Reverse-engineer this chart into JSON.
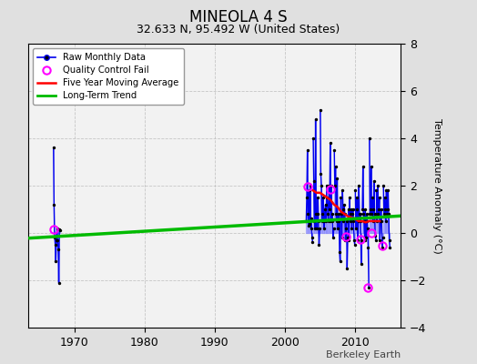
{
  "title": "MINEOLA 4 S",
  "subtitle": "32.633 N, 95.492 W (United States)",
  "ylabel": "Temperature Anomaly (°C)",
  "attribution": "Berkeley Earth",
  "xlim": [
    1963.5,
    2016.5
  ],
  "ylim": [
    -4,
    8
  ],
  "yticks": [
    -4,
    -2,
    0,
    2,
    4,
    6,
    8
  ],
  "xticks": [
    1970,
    1980,
    1990,
    2000,
    2010
  ],
  "background_color": "#e8e8e8",
  "plot_bg": "#f0f0f0",
  "raw_monthly_years": [
    1967.04,
    1967.12,
    1967.21,
    1967.29,
    1967.37,
    1967.46,
    1967.54,
    1967.62,
    1967.71,
    1967.79,
    1967.87,
    1967.96,
    2003.04,
    2003.12,
    2003.21,
    2003.29,
    2003.37,
    2003.46,
    2003.54,
    2003.62,
    2003.71,
    2003.79,
    2003.87,
    2003.96,
    2004.04,
    2004.12,
    2004.21,
    2004.29,
    2004.37,
    2004.46,
    2004.54,
    2004.62,
    2004.71,
    2004.79,
    2004.87,
    2004.96,
    2005.04,
    2005.12,
    2005.21,
    2005.29,
    2005.37,
    2005.46,
    2005.54,
    2005.62,
    2005.71,
    2005.79,
    2005.87,
    2005.96,
    2006.04,
    2006.12,
    2006.21,
    2006.29,
    2006.37,
    2006.46,
    2006.54,
    2006.62,
    2006.71,
    2006.79,
    2006.87,
    2006.96,
    2007.04,
    2007.12,
    2007.21,
    2007.29,
    2007.37,
    2007.46,
    2007.54,
    2007.62,
    2007.71,
    2007.79,
    2007.87,
    2007.96,
    2008.04,
    2008.12,
    2008.21,
    2008.29,
    2008.37,
    2008.46,
    2008.54,
    2008.62,
    2008.71,
    2008.79,
    2008.87,
    2008.96,
    2009.04,
    2009.12,
    2009.21,
    2009.29,
    2009.37,
    2009.46,
    2009.54,
    2009.62,
    2009.71,
    2009.79,
    2009.87,
    2009.96,
    2010.04,
    2010.12,
    2010.21,
    2010.29,
    2010.37,
    2010.46,
    2010.54,
    2010.62,
    2010.71,
    2010.79,
    2010.87,
    2010.96,
    2011.04,
    2011.12,
    2011.21,
    2011.29,
    2011.37,
    2011.46,
    2011.54,
    2011.62,
    2011.71,
    2011.79,
    2011.87,
    2011.96,
    2012.04,
    2012.12,
    2012.21,
    2012.29,
    2012.37,
    2012.46,
    2012.54,
    2012.62,
    2012.71,
    2012.79,
    2012.87,
    2012.96,
    2013.04,
    2013.12,
    2013.21,
    2013.29,
    2013.37,
    2013.46,
    2013.54,
    2013.62,
    2013.71,
    2013.79,
    2013.87,
    2013.96,
    2014.04,
    2014.12,
    2014.21,
    2014.29,
    2014.37,
    2014.46,
    2014.54,
    2014.62,
    2014.71,
    2014.79,
    2014.87,
    2014.96
  ],
  "raw_monthly_values": [
    3.6,
    1.2,
    -0.2,
    -0.5,
    -1.2,
    -0.3,
    0.2,
    -0.3,
    -0.7,
    -2.1,
    0.15,
    0.1,
    0.5,
    1.5,
    3.5,
    0.8,
    0.3,
    1.8,
    0.4,
    2.0,
    0.2,
    0.6,
    -0.2,
    -0.4,
    4.0,
    2.2,
    0.5,
    0.2,
    4.8,
    0.8,
    0.2,
    0.8,
    1.5,
    0.5,
    -0.5,
    0.2,
    5.2,
    2.5,
    2.0,
    0.8,
    0.5,
    1.5,
    0.5,
    0.2,
    1.0,
    1.2,
    0.5,
    2.0,
    1.5,
    0.8,
    0.5,
    2.0,
    1.0,
    3.8,
    0.5,
    2.0,
    0.5,
    0.8,
    -0.2,
    0.2,
    3.5,
    2.0,
    2.8,
    0.8,
    0.5,
    2.3,
    0.2,
    0.5,
    0.8,
    -0.8,
    -1.2,
    1.5,
    0.8,
    -0.2,
    1.8,
    1.0,
    0.5,
    1.2,
    0.8,
    -0.3,
    0.2,
    0.5,
    -1.5,
    -0.2,
    1.0,
    -0.3,
    1.5,
    0.8,
    0.5,
    1.0,
    0.2,
    0.8,
    1.0,
    0.5,
    -0.3,
    -0.5,
    1.8,
    0.2,
    1.0,
    1.5,
    -0.3,
    0.5,
    2.0,
    0.8,
    0.5,
    0.8,
    -1.3,
    -0.3,
    1.0,
    2.8,
    0.8,
    0.5,
    -0.3,
    1.0,
    -0.2,
    0.5,
    0.8,
    0.2,
    -0.6,
    -2.3,
    4.0,
    0.8,
    1.0,
    2.8,
    0.8,
    1.5,
    0.5,
    1.0,
    2.2,
    0.8,
    -0.1,
    -0.3,
    1.8,
    0.5,
    2.0,
    0.8,
    1.0,
    1.5,
    -0.3,
    0.5,
    1.0,
    0.5,
    -0.6,
    -0.2,
    2.0,
    0.8,
    1.5,
    1.0,
    0.5,
    1.8,
    0.8,
    1.0,
    1.8,
    0.8,
    -0.3,
    -0.6
  ],
  "qc_fail_points": [
    [
      1967.04,
      0.15
    ],
    [
      2003.29,
      1.95
    ],
    [
      2006.46,
      1.85
    ],
    [
      2008.71,
      -0.15
    ],
    [
      2010.79,
      -0.25
    ],
    [
      2011.79,
      -2.3
    ],
    [
      2012.29,
      0.0
    ],
    [
      2013.87,
      -0.55
    ]
  ],
  "five_year_ma_years": [
    2004.0,
    2004.5,
    2005.0,
    2005.5,
    2006.0,
    2006.5,
    2007.0,
    2007.5,
    2008.0,
    2008.5,
    2009.0,
    2009.5,
    2010.0,
    2010.5,
    2011.0,
    2011.5,
    2012.0,
    2012.5,
    2013.0,
    2013.5
  ],
  "five_year_ma_values": [
    1.8,
    1.7,
    1.7,
    1.6,
    1.5,
    1.4,
    1.2,
    1.1,
    0.9,
    0.8,
    0.7,
    0.65,
    0.6,
    0.5,
    0.5,
    0.45,
    0.5,
    0.5,
    0.5,
    0.5
  ],
  "trend_x": [
    1963.5,
    2016.5
  ],
  "trend_y": [
    -0.22,
    0.72
  ],
  "colors": {
    "raw_line": "#0000ee",
    "raw_line_light": "#8888ff",
    "raw_marker": "#000000",
    "qc_fail": "#ff00ff",
    "five_year_ma": "#ff0000",
    "long_term_trend": "#00bb00",
    "grid": "#bbbbbb",
    "background": "#e0e0e0",
    "plot_bg": "#f2f2f2"
  },
  "figsize": [
    5.24,
    4.0
  ],
  "dpi": 100
}
